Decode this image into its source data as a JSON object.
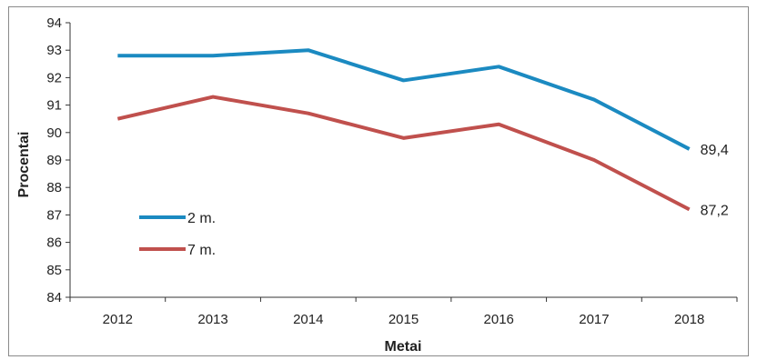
{
  "chart_data": {
    "type": "line",
    "categories": [
      "2012",
      "2013",
      "2014",
      "2015",
      "2016",
      "2017",
      "2018"
    ],
    "series": [
      {
        "name": "2 m.",
        "color": "#1b8ac1",
        "values": [
          92.8,
          92.8,
          93.0,
          91.9,
          92.4,
          91.2,
          89.4
        ]
      },
      {
        "name": "7 m.",
        "color": "#c0504d",
        "values": [
          90.5,
          91.3,
          90.7,
          89.8,
          90.3,
          89.0,
          87.2
        ]
      }
    ],
    "end_labels": [
      "89,4",
      "87,2"
    ],
    "xlabel": "Metai",
    "ylabel": "Procentai",
    "ylim": [
      84,
      94
    ],
    "yticks": [
      "84",
      "85",
      "86",
      "87",
      "88",
      "89",
      "90",
      "91",
      "92",
      "93",
      "94"
    ],
    "grid": false,
    "legend_position": "inside-left"
  }
}
